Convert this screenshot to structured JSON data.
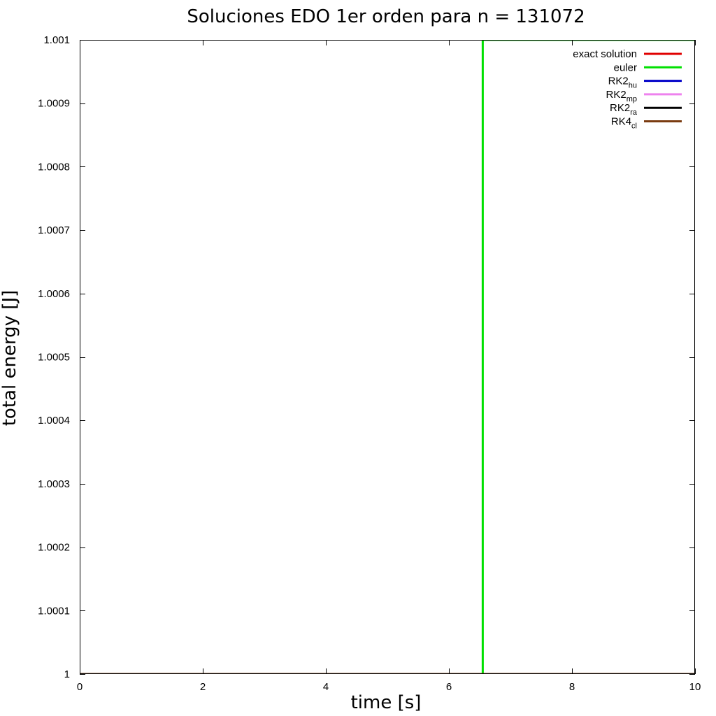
{
  "chart_data": {
    "type": "line",
    "title": "Soluciones EDO 1er orden para n = 131072",
    "xlabel": "time [s]",
    "ylabel": "total energy [J]",
    "xlim": [
      0,
      10
    ],
    "ylim": [
      1,
      1.001
    ],
    "xticks": [
      0,
      2,
      4,
      6,
      8,
      10
    ],
    "xtick_labels": [
      "0",
      "2",
      "4",
      "6",
      "8",
      "10"
    ],
    "yticks": [
      1,
      1.0001,
      1.0002,
      1.0003,
      1.0004,
      1.0005,
      1.0006,
      1.0007,
      1.0008,
      1.0009,
      1.001
    ],
    "ytick_labels": [
      "1",
      "1.0001",
      "1.0002",
      "1.0003",
      "1.0004",
      "1.0005",
      "1.0006",
      "1.0007",
      "1.0008",
      "1.0009",
      "1.001"
    ],
    "grid": false,
    "legend_position": "top-right",
    "series": [
      {
        "name": "exact solution",
        "name_main": "exact solution",
        "name_sub": "",
        "color": "#e00000",
        "x": [
          0,
          10
        ],
        "y": [
          1,
          1
        ]
      },
      {
        "name": "euler",
        "name_main": "euler",
        "name_sub": "",
        "color": "#00e000",
        "x": [
          0,
          6.55,
          6.55,
          10
        ],
        "y": [
          1,
          1,
          1.001,
          1.001
        ]
      },
      {
        "name": "RK2hu",
        "name_main": "RK2",
        "name_sub": "hu",
        "color": "#0000c8",
        "x": [
          0,
          10
        ],
        "y": [
          1,
          1
        ]
      },
      {
        "name": "RK2mp",
        "name_main": "RK2",
        "name_sub": "mp",
        "color": "#ee82ee",
        "x": [
          0,
          10
        ],
        "y": [
          1,
          1
        ]
      },
      {
        "name": "RK2ra",
        "name_main": "RK2",
        "name_sub": "ra",
        "color": "#000000",
        "x": [
          0,
          10
        ],
        "y": [
          1,
          1
        ]
      },
      {
        "name": "RK4cl",
        "name_main": "RK4",
        "name_sub": "cl",
        "color": "#7a3b10",
        "x": [
          0,
          10
        ],
        "y": [
          1,
          1
        ]
      }
    ]
  }
}
